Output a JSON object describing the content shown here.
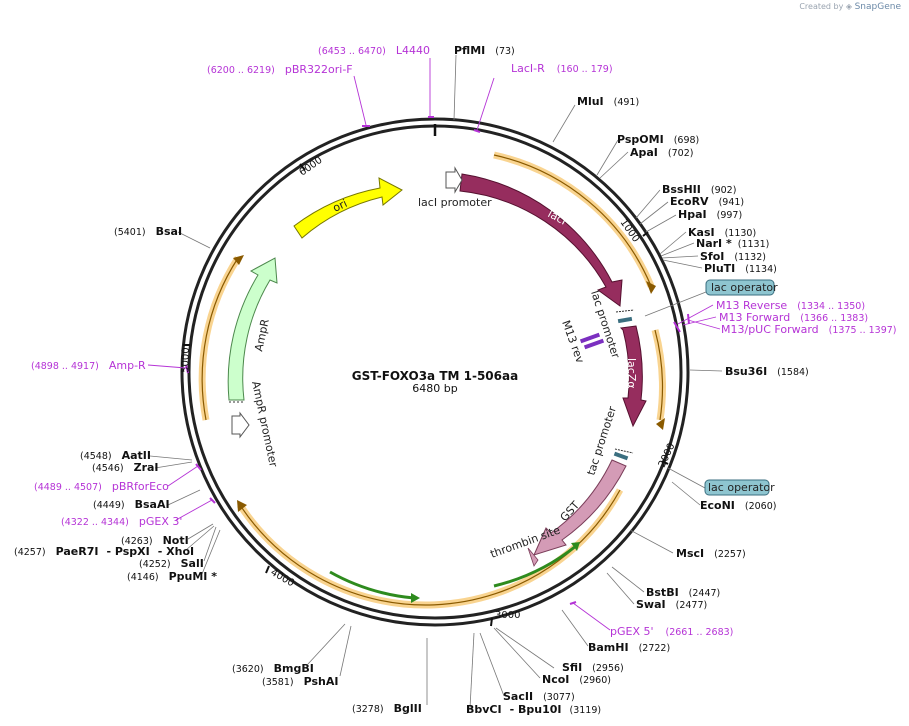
{
  "credit": {
    "prefix": "Created by",
    "brand": "SnapGene"
  },
  "plasmid": {
    "name": "GST-FOXO3a TM 1-506aa",
    "size_label": "6480 bp"
  },
  "ticks": [
    "1000",
    "2000",
    "3000",
    "4000",
    "5000",
    "6000"
  ],
  "enzymes": [
    {
      "name": "PflMI",
      "pos": "(73)"
    },
    {
      "name": "MluI",
      "pos": "(491)"
    },
    {
      "name": "PspOMI",
      "pos": "(698)"
    },
    {
      "name": "ApaI",
      "pos": "(702)"
    },
    {
      "name": "BssHII",
      "pos": "(902)"
    },
    {
      "name": "EcoRV",
      "pos": "(941)"
    },
    {
      "name": "HpaI",
      "pos": "(997)"
    },
    {
      "name": "KasI",
      "pos": "(1130)"
    },
    {
      "name": "NarI *",
      "pos": "(1131)"
    },
    {
      "name": "SfoI",
      "pos": "(1132)"
    },
    {
      "name": "PluTI",
      "pos": "(1134)"
    },
    {
      "name": "Bsu36I",
      "pos": "(1584)"
    },
    {
      "name": "EcoNI",
      "pos": "(2060)"
    },
    {
      "name": "MscI",
      "pos": "(2257)"
    },
    {
      "name": "BstBI",
      "pos": "(2447)"
    },
    {
      "name": "SwaI",
      "pos": "(2477)"
    },
    {
      "name": "BamHI",
      "pos": "(2722)"
    },
    {
      "name": "SfiI",
      "pos": "(2956)"
    },
    {
      "name": "NcoI",
      "pos": "(2960)"
    },
    {
      "name": "SacII",
      "pos": "(3077)"
    },
    {
      "name": "BbvCI",
      "pos": "- Bpu10I"
    },
    {
      "name": "(3119)",
      "pos": ""
    },
    {
      "name": "BglII",
      "pos": "(3278)"
    },
    {
      "name": "PshAI",
      "pos": "(3581)"
    },
    {
      "name": "BmgBI",
      "pos": "(3620)"
    },
    {
      "name": "PpuMI *",
      "pos": "(4146)"
    },
    {
      "name": "SalI",
      "pos": "(4252)"
    },
    {
      "name": "PaeR7I",
      "pos": "(4257)"
    },
    {
      "name": "- PspXI",
      "pos": ""
    },
    {
      "name": "- XhoI",
      "pos": ""
    },
    {
      "name": "NotI",
      "pos": "(4263)"
    },
    {
      "name": "BsaAI",
      "pos": "(4449)"
    },
    {
      "name": "ZraI",
      "pos": "(4546)"
    },
    {
      "name": "AatII",
      "pos": "(4548)"
    },
    {
      "name": "BsaI",
      "pos": "(5401)"
    }
  ],
  "primers": [
    {
      "name": "L4440",
      "pos": "(6453 .. 6470)"
    },
    {
      "name": "pBR322ori-F",
      "pos": "(6200 .. 6219)"
    },
    {
      "name": "LacI-R",
      "pos": "(160 .. 179)"
    },
    {
      "name": "M13 Reverse",
      "pos": "(1334 .. 1350)"
    },
    {
      "name": "M13 Forward",
      "pos": "(1366 .. 1383)"
    },
    {
      "name": "M13/pUC Forward",
      "pos": "(1375 .. 1397)"
    },
    {
      "name": "Amp-R",
      "pos": "(4898 .. 4917)"
    },
    {
      "name": "pBRforEco",
      "pos": "(4489 .. 4507)"
    },
    {
      "name": "pGEX 3'",
      "pos": "(4322 .. 4344)"
    },
    {
      "name": "pGEX 5'",
      "pos": "(2661 .. 2683)"
    }
  ],
  "features": {
    "lacI": "lacI",
    "lacI_promoter": "lacI promoter",
    "lac_promoter": "lac promoter",
    "M13_rev": "M13 rev",
    "lacZa": "lacZα",
    "tac_promoter": "tac promoter",
    "GST": "GST",
    "thrombin_site": "thrombin site",
    "ori": "ori",
    "AmpR": "AmpR",
    "AmpR_promoter": "AmpR promoter",
    "lac_operator_1": "lac operator",
    "lac_operator_2": "lac operator"
  },
  "colors": {
    "lacI": "#962d5e",
    "lacZa": "#962d5e",
    "GST": "#d49bb6",
    "ori": "#ffff00",
    "AmpR": "#ccffcc",
    "orf": "#f7c66b",
    "green_orf": "#2e8b1e",
    "operator": "#8ec5d0",
    "primer": "#b533d6"
  }
}
